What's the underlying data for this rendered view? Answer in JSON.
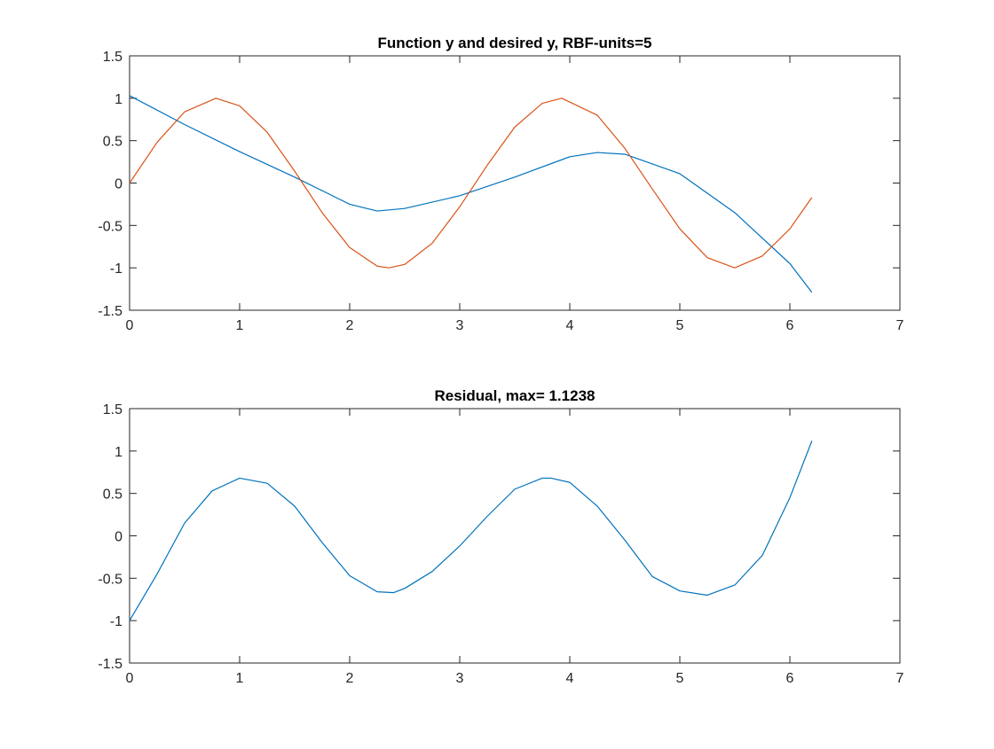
{
  "chart_data": [
    {
      "type": "line",
      "title": "Function y and desired y, RBF-units=5",
      "xlabel": "",
      "ylabel": "",
      "xlim": [
        0,
        7
      ],
      "ylim": [
        -1.5,
        1.5
      ],
      "xticks": [
        "0",
        "1",
        "2",
        "3",
        "4",
        "5",
        "6",
        "7"
      ],
      "yticks": [
        "1.5",
        "1",
        "0.5",
        "0",
        "-0.5",
        "-1",
        "-1.5"
      ],
      "grid": false,
      "series": [
        {
          "color": "#0072BD",
          "x": [
            0,
            0.5,
            1,
            1.5,
            2,
            2.25,
            2.5,
            3,
            3.5,
            4,
            4.25,
            4.5,
            5,
            5.5,
            6,
            6.2
          ],
          "y": [
            1.03,
            0.69,
            0.37,
            0.07,
            -0.25,
            -0.33,
            -0.3,
            -0.15,
            0.07,
            0.31,
            0.36,
            0.34,
            0.11,
            -0.35,
            -0.95,
            -1.29
          ]
        },
        {
          "color": "#D95319",
          "x": [
            0,
            0.25,
            0.5,
            0.785,
            1,
            1.25,
            1.5,
            1.75,
            2,
            2.25,
            2.356,
            2.5,
            2.75,
            3,
            3.25,
            3.5,
            3.75,
            3.927,
            4.25,
            4.5,
            4.75,
            5,
            5.25,
            5.498,
            5.75,
            6,
            6.2
          ],
          "y": [
            0,
            0.48,
            0.84,
            1.0,
            0.91,
            0.6,
            0.14,
            -0.35,
            -0.76,
            -0.98,
            -1.0,
            -0.96,
            -0.71,
            -0.28,
            0.21,
            0.66,
            0.94,
            1.0,
            0.8,
            0.41,
            -0.07,
            -0.54,
            -0.88,
            -1.0,
            -0.86,
            -0.54,
            -0.17
          ]
        }
      ]
    },
    {
      "type": "line",
      "title": "Residual, max= 1.1238",
      "xlabel": "",
      "ylabel": "",
      "xlim": [
        0,
        7
      ],
      "ylim": [
        -1.5,
        1.5
      ],
      "xticks": [
        "0",
        "1",
        "2",
        "3",
        "4",
        "5",
        "6",
        "7"
      ],
      "yticks": [
        "1.5",
        "1",
        "0.5",
        "0",
        "-0.5",
        "-1",
        "-1.5"
      ],
      "grid": false,
      "series": [
        {
          "color": "#0072BD",
          "x": [
            0,
            0.25,
            0.5,
            0.75,
            1,
            1.25,
            1.5,
            1.75,
            2,
            2.25,
            2.4,
            2.5,
            2.75,
            3,
            3.25,
            3.5,
            3.75,
            3.83,
            4,
            4.25,
            4.5,
            4.75,
            5,
            5.25,
            5.5,
            5.75,
            6,
            6.2
          ],
          "y": [
            -1.0,
            -0.45,
            0.15,
            0.53,
            0.68,
            0.62,
            0.35,
            -0.08,
            -0.47,
            -0.66,
            -0.67,
            -0.62,
            -0.42,
            -0.12,
            0.23,
            0.55,
            0.68,
            0.68,
            0.63,
            0.35,
            -0.05,
            -0.48,
            -0.65,
            -0.7,
            -0.58,
            -0.23,
            0.45,
            1.12
          ]
        }
      ]
    }
  ]
}
